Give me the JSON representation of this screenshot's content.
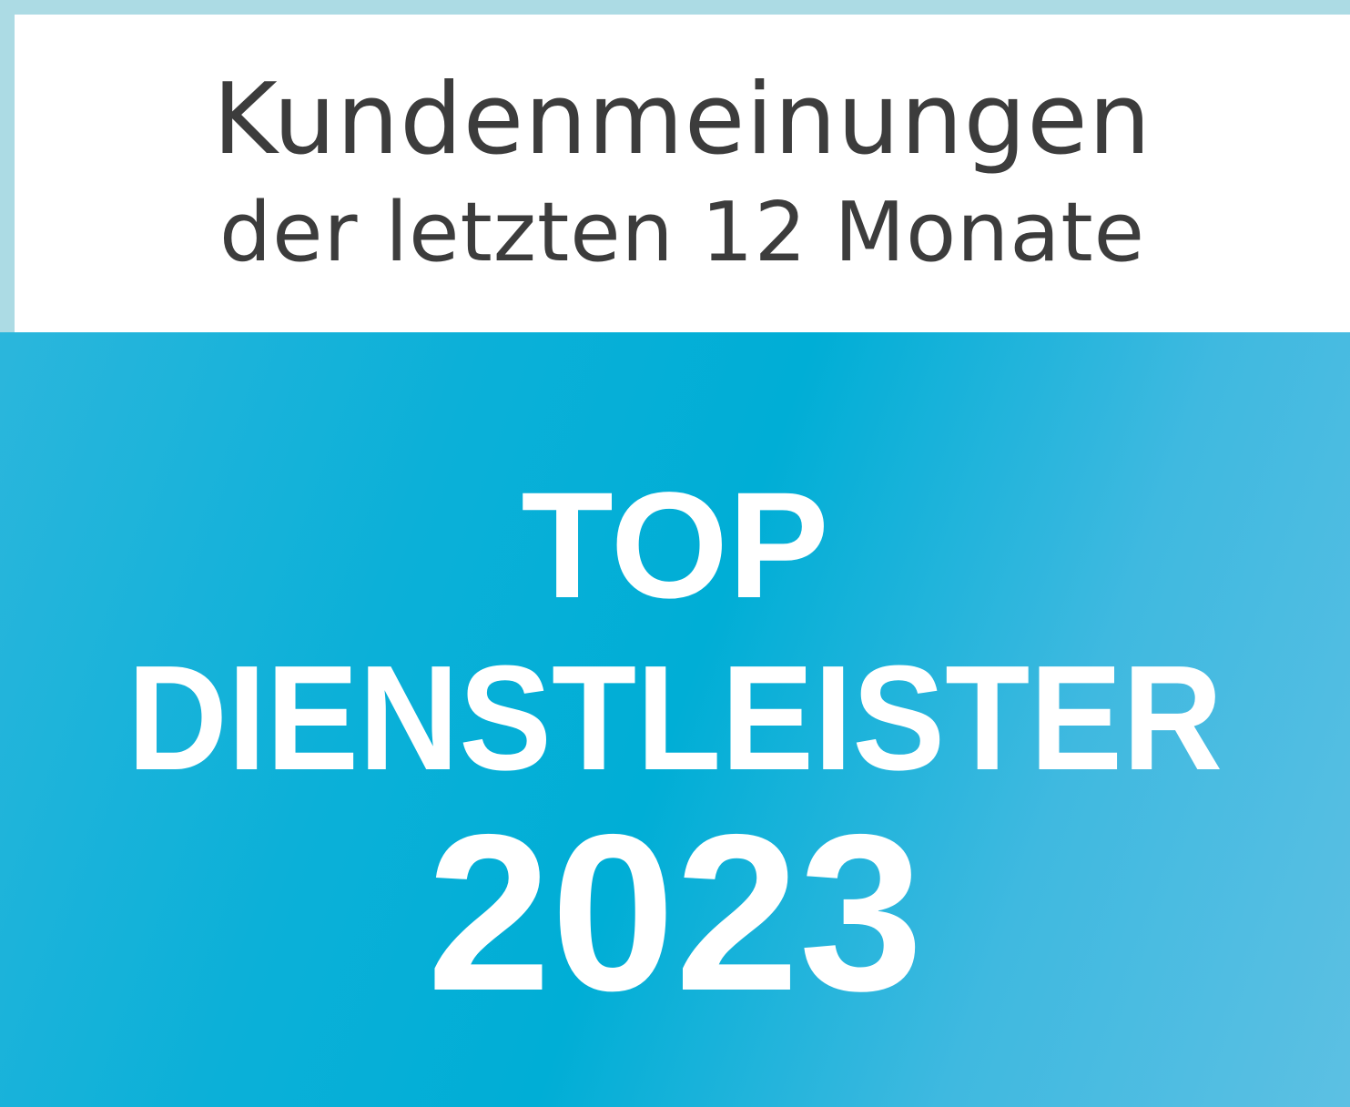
{
  "header": {
    "line1": "Kundenmeinungen",
    "line2": "der letzten 12 Monate"
  },
  "badge": {
    "line1": "TOP",
    "line2": "DIENSTLEISTER",
    "year": "2023"
  },
  "colors": {
    "border": "#acdbe4",
    "panel": "#00aed6",
    "text_dark": "#3c3c3c",
    "text_light": "#ffffff"
  }
}
